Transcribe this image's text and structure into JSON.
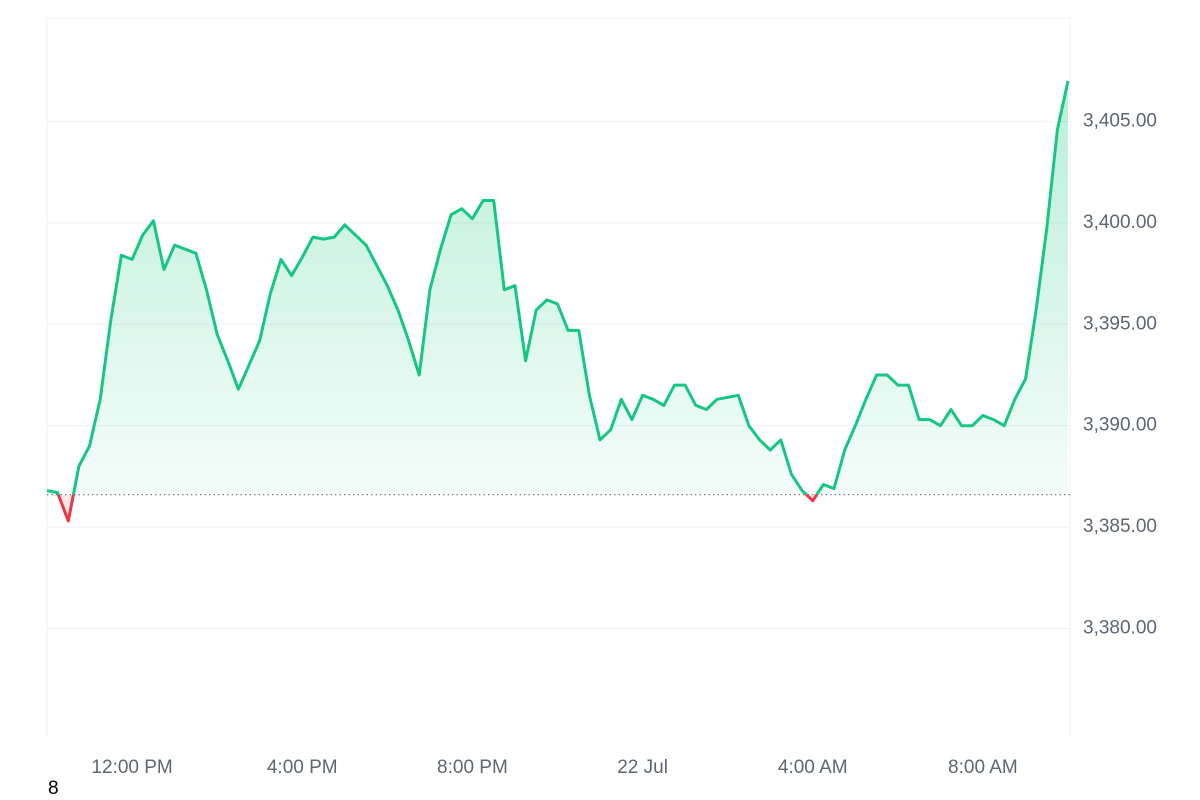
{
  "chart_data": {
    "type": "line",
    "x": [
      null,
      null,
      null,
      null,
      null,
      null,
      null,
      null,
      "12:00 PM",
      null,
      null,
      null,
      null,
      null,
      null,
      null,
      null,
      null,
      null,
      null,
      null,
      null,
      null,
      null,
      "4:00 PM",
      null,
      null,
      null,
      null,
      null,
      null,
      null,
      null,
      null,
      null,
      null,
      null,
      null,
      null,
      null,
      "8:00 PM",
      null,
      null,
      null,
      null,
      null,
      null,
      null,
      null,
      null,
      null,
      null,
      null,
      null,
      null,
      null,
      "22 Jul",
      null,
      null,
      null,
      null,
      null,
      null,
      null,
      null,
      null,
      null,
      null,
      null,
      null,
      null,
      null,
      "4:00 AM",
      null,
      null,
      null,
      null,
      null,
      null,
      null,
      null,
      null,
      null,
      null,
      null,
      null,
      null,
      null,
      "8:00 AM",
      null,
      null,
      null,
      null,
      null,
      null,
      null,
      null
    ],
    "series": [
      {
        "color": "#16c784",
        "values": [
          3386.8,
          3386.7,
          3385.3,
          3388.0,
          3389.0,
          3391.3,
          3395.2,
          3398.4,
          3398.2,
          3399.4,
          3400.1,
          3397.7,
          3398.9,
          3398.7,
          3398.5,
          3396.7,
          3394.5,
          3393.2,
          3391.8,
          3393.0,
          3394.2,
          3396.5,
          3398.2,
          3397.4,
          3398.3,
          3399.3,
          3399.2,
          3399.3,
          3399.9,
          3399.4,
          3398.9,
          3397.9,
          3396.9,
          3395.7,
          3394.2,
          3392.5,
          3396.7,
          3398.7,
          3400.4,
          3400.7,
          3400.2,
          3401.1,
          3401.1,
          3396.7,
          3396.9,
          3393.2,
          3395.7,
          3396.2,
          3396.0,
          3394.7,
          3394.7,
          3391.5,
          3389.3,
          3389.8,
          3391.3,
          3390.3,
          3391.5,
          3391.3,
          3391.0,
          3392.0,
          3392.0,
          3391.0,
          3390.8,
          3391.3,
          3391.4,
          3391.5,
          3390.0,
          3389.3,
          3388.8,
          3389.3,
          3387.6,
          3386.8,
          3386.3,
          3387.1,
          3386.9,
          3388.8,
          3390.0,
          3391.3,
          3392.5,
          3392.5,
          3392.0,
          3392.0,
          3390.3,
          3390.3,
          3390.0,
          3390.8,
          3390.0,
          3390.0,
          3390.5,
          3390.3,
          3390.0,
          3391.3,
          3392.3,
          3395.7,
          3399.7,
          3404.6,
          3407.0
        ]
      }
    ],
    "below_color": "#ea3943",
    "reference_value": 3386.6,
    "ylim": [
      3374.7,
      3410.1
    ],
    "yticks": [
      {
        "value": 3380,
        "label": "3,380.00"
      },
      {
        "value": 3385,
        "label": "3,385.00"
      },
      {
        "value": 3390,
        "label": "3,390.00"
      },
      {
        "value": 3395,
        "label": "3,395.00"
      },
      {
        "value": 3400,
        "label": "3,400.00"
      },
      {
        "value": 3405,
        "label": "3,405.00"
      }
    ],
    "grid": true,
    "note": "8"
  }
}
